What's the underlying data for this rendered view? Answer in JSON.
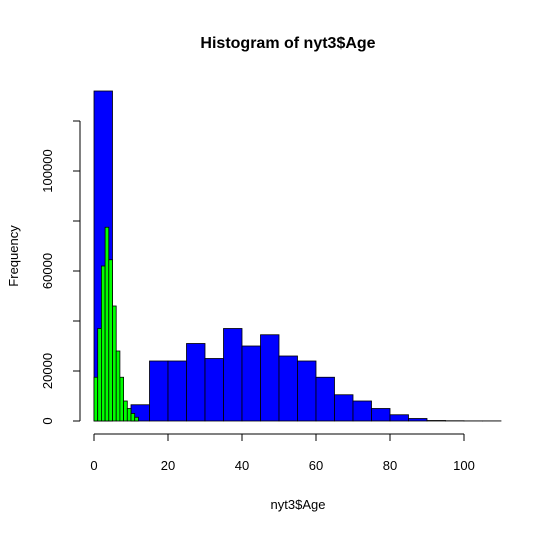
{
  "chart_data": {
    "type": "histogram",
    "title": "Histogram of nyt3$Age",
    "xlabel": "nyt3$Age",
    "ylabel": "Frequency",
    "xlim": [
      0,
      110
    ],
    "ylim": [
      0,
      132000
    ],
    "x_ticks": [
      0,
      20,
      40,
      60,
      80,
      100
    ],
    "y_ticks": [
      0,
      20000,
      60000,
      100000
    ],
    "series": [
      {
        "name": "blue",
        "color": "#0000ff",
        "bin_width": 5,
        "bins": [
          {
            "start": 0,
            "end": 5,
            "count": 132000
          },
          {
            "start": 5,
            "end": 10,
            "count": 0
          },
          {
            "start": 10,
            "end": 15,
            "count": 6500
          },
          {
            "start": 15,
            "end": 20,
            "count": 24000
          },
          {
            "start": 20,
            "end": 25,
            "count": 24000
          },
          {
            "start": 25,
            "end": 30,
            "count": 31000
          },
          {
            "start": 30,
            "end": 35,
            "count": 25000
          },
          {
            "start": 35,
            "end": 40,
            "count": 37000
          },
          {
            "start": 40,
            "end": 45,
            "count": 30000
          },
          {
            "start": 45,
            "end": 50,
            "count": 34500
          },
          {
            "start": 50,
            "end": 55,
            "count": 26000
          },
          {
            "start": 55,
            "end": 60,
            "count": 24000
          },
          {
            "start": 60,
            "end": 65,
            "count": 17500
          },
          {
            "start": 65,
            "end": 70,
            "count": 10500
          },
          {
            "start": 70,
            "end": 75,
            "count": 8000
          },
          {
            "start": 75,
            "end": 80,
            "count": 5000
          },
          {
            "start": 80,
            "end": 85,
            "count": 2500
          },
          {
            "start": 85,
            "end": 90,
            "count": 1000
          },
          {
            "start": 90,
            "end": 95,
            "count": 200
          },
          {
            "start": 95,
            "end": 100,
            "count": 100
          },
          {
            "start": 100,
            "end": 105,
            "count": 50
          },
          {
            "start": 105,
            "end": 110,
            "count": 50
          }
        ]
      },
      {
        "name": "green",
        "color": "#00ff00",
        "bin_width": 1,
        "bins": [
          {
            "start": 0,
            "end": 1,
            "count": 17500
          },
          {
            "start": 1,
            "end": 2,
            "count": 37000
          },
          {
            "start": 2,
            "end": 3,
            "count": 62000
          },
          {
            "start": 3,
            "end": 4,
            "count": 77500
          },
          {
            "start": 4,
            "end": 5,
            "count": 64500
          },
          {
            "start": 5,
            "end": 6,
            "count": 46000
          },
          {
            "start": 6,
            "end": 7,
            "count": 28000
          },
          {
            "start": 7,
            "end": 8,
            "count": 17500
          },
          {
            "start": 8,
            "end": 9,
            "count": 8000
          },
          {
            "start": 9,
            "end": 10,
            "count": 5000
          },
          {
            "start": 10,
            "end": 11,
            "count": 3000
          },
          {
            "start": 11,
            "end": 12,
            "count": 1500
          }
        ]
      }
    ]
  }
}
